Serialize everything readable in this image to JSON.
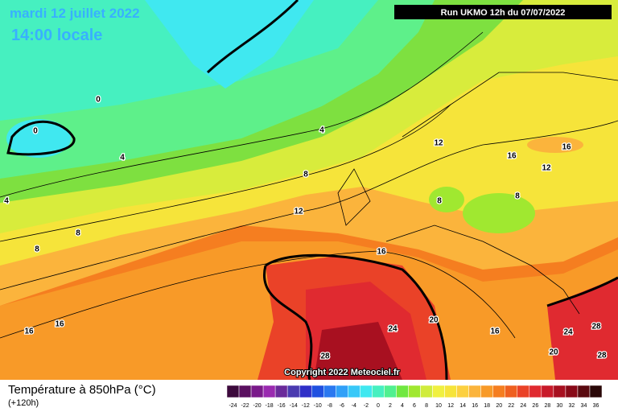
{
  "header": {
    "date": "mardi 12 juillet 2022",
    "time": "14:00 locale",
    "run": "Run UKMO 12h du 07/07/2022"
  },
  "copyright": "Copyright 2022 Meteociel.fr",
  "contour_labels": [
    0,
    0,
    4,
    4,
    4,
    8,
    8,
    8,
    12,
    12,
    16,
    16,
    12,
    8,
    8,
    16,
    16,
    16,
    24,
    20,
    16,
    24,
    28,
    28,
    20,
    28
  ],
  "legend": {
    "title": "Température à 850hPa (°C)",
    "lead": "(+120h)",
    "scale": [
      -24,
      -22,
      -20,
      -18,
      -16,
      -14,
      -12,
      -10,
      -8,
      -6,
      -4,
      -2,
      0,
      2,
      4,
      6,
      8,
      10,
      12,
      14,
      16,
      18,
      20,
      22,
      24,
      26,
      28,
      30,
      32,
      34,
      36
    ],
    "colors": [
      "#3c0a3c",
      "#5a1060",
      "#7a1a8a",
      "#9a2ab0",
      "#6a2a9a",
      "#4a3ab0",
      "#3030c8",
      "#2050e0",
      "#2a78f0",
      "#30a0f8",
      "#38c8f8",
      "#40e8f0",
      "#46f0c0",
      "#50f090",
      "#70e840",
      "#a0e830",
      "#d0ec3c",
      "#f0f040",
      "#f6e43a",
      "#fcd040",
      "#fbb43c",
      "#f89a28",
      "#f57e20",
      "#ef6020",
      "#ea4228",
      "#e02a30",
      "#c81a2a",
      "#a81020",
      "#880a18",
      "#5a0a10",
      "#2a0808"
    ]
  }
}
